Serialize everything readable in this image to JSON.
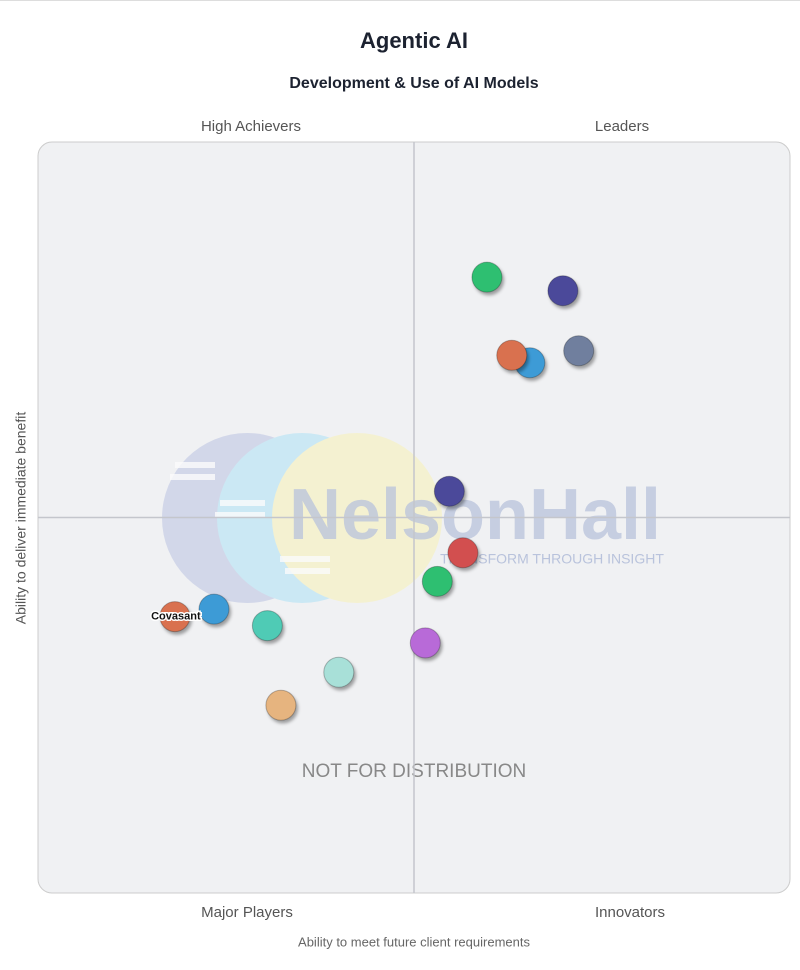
{
  "chart_data": {
    "type": "quadrant",
    "title": "Agentic AI",
    "subtitle": "Development & Use of AI Models",
    "quadrants": {
      "top_left": "High Achievers",
      "top_right": "Leaders",
      "bottom_left": "Major Players",
      "bottom_right": "Innovators"
    },
    "x_label": "Ability to meet future client requirements",
    "y_label": "Ability to deliver immediate benefit",
    "xlim": [
      0,
      100
    ],
    "ylim": [
      0,
      100
    ],
    "points": [
      {
        "x": 59.7,
        "y": 82.0,
        "color": "#2fbf71"
      },
      {
        "x": 69.8,
        "y": 80.2,
        "color": "#4b4a9a"
      },
      {
        "x": 65.4,
        "y": 70.6,
        "color": "#3d9bd6"
      },
      {
        "x": 63.0,
        "y": 71.6,
        "color": "#d9714f"
      },
      {
        "x": 71.9,
        "y": 72.2,
        "color": "#6f7f9e"
      },
      {
        "x": 54.7,
        "y": 53.5,
        "color": "#4b4a9a"
      },
      {
        "x": 56.5,
        "y": 45.3,
        "color": "#d2504f"
      },
      {
        "x": 53.1,
        "y": 41.5,
        "color": "#2fbf71"
      },
      {
        "x": 51.5,
        "y": 33.3,
        "color": "#b86ad8"
      },
      {
        "x": 23.4,
        "y": 37.8,
        "color": "#3d9bd6"
      },
      {
        "x": 18.2,
        "y": 36.8,
        "color": "#d9714f",
        "label": "Covasant"
      },
      {
        "x": 30.5,
        "y": 35.6,
        "color": "#4fcbb5"
      },
      {
        "x": 40.0,
        "y": 29.4,
        "color": "#a8e0d8"
      },
      {
        "x": 32.3,
        "y": 25.0,
        "color": "#e6b47f"
      }
    ]
  },
  "watermark": {
    "brand": "NelsonHall",
    "tagline": "TRANSFORM THROUGH INSIGHT",
    "notice": "NOT FOR DISTRIBUTION"
  }
}
